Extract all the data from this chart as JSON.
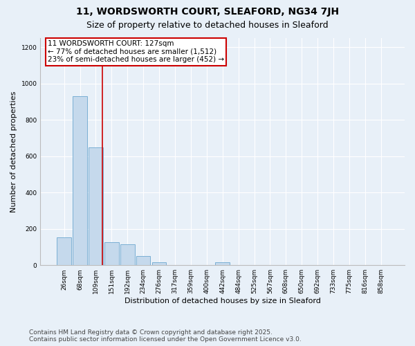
{
  "title": "11, WORDSWORTH COURT, SLEAFORD, NG34 7JH",
  "subtitle": "Size of property relative to detached houses in Sleaford",
  "xlabel": "Distribution of detached houses by size in Sleaford",
  "ylabel": "Number of detached properties",
  "bins": [
    "26sqm",
    "68sqm",
    "109sqm",
    "151sqm",
    "192sqm",
    "234sqm",
    "276sqm",
    "317sqm",
    "359sqm",
    "400sqm",
    "442sqm",
    "484sqm",
    "525sqm",
    "567sqm",
    "608sqm",
    "650sqm",
    "692sqm",
    "733sqm",
    "775sqm",
    "816sqm",
    "858sqm"
  ],
  "values": [
    155,
    930,
    650,
    125,
    115,
    50,
    15,
    0,
    0,
    0,
    15,
    0,
    0,
    0,
    0,
    0,
    0,
    0,
    0,
    0,
    0
  ],
  "bar_color": "#c5d9ec",
  "bar_edge_color": "#7aafd4",
  "vline_x_index": 2.43,
  "vline_color": "#cc0000",
  "annotation_text": "11 WORDSWORTH COURT: 127sqm\n← 77% of detached houses are smaller (1,512)\n23% of semi-detached houses are larger (452) →",
  "annotation_box_color": "#cc0000",
  "annotation_box_fill": "white",
  "ylim": [
    0,
    1250
  ],
  "yticks": [
    0,
    200,
    400,
    600,
    800,
    1000,
    1200
  ],
  "background_color": "#e8f0f8",
  "plot_bg_color": "#e8f0f8",
  "footer_line1": "Contains HM Land Registry data © Crown copyright and database right 2025.",
  "footer_line2": "Contains public sector information licensed under the Open Government Licence v3.0.",
  "title_fontsize": 10,
  "subtitle_fontsize": 9,
  "axis_label_fontsize": 8,
  "tick_fontsize": 6.5,
  "annotation_fontsize": 7.5,
  "footer_fontsize": 6.5
}
